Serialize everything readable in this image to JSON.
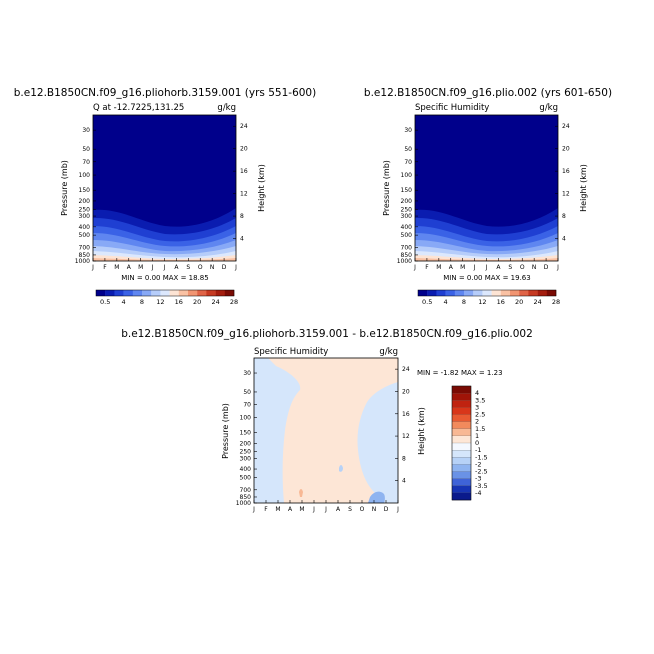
{
  "chart_data": [
    {
      "type": "contour",
      "title": "b.e12.B1850CN.f09_g16.pliohorb.3159.001 (yrs 551-600)",
      "left_label": "Q at -12.7225,131.25",
      "right_label": "g/kg",
      "xlabel": "",
      "ylabel": "Pressure (mb)",
      "ylabel_right": "Height (km)",
      "x_ticks": [
        "J",
        "F",
        "M",
        "A",
        "M",
        "J",
        "J",
        "A",
        "S",
        "O",
        "N",
        "D",
        "J"
      ],
      "y_ticks": [
        "30",
        "50",
        "70",
        "100",
        "150",
        "200",
        "250",
        "300",
        "400",
        "500",
        "700",
        "850",
        "1000"
      ],
      "y_ticks_right": [
        "24",
        "20",
        "16",
        "12",
        "8",
        "4"
      ],
      "ylim": [
        1000,
        20
      ],
      "y_scale": "log",
      "stats": "MIN =    0.00  MAX =   18.85",
      "min": 0.0,
      "max": 18.85,
      "colorbar_labels": [
        "0.5",
        "4",
        "8",
        "12",
        "16",
        "20",
        "24",
        "28"
      ]
    },
    {
      "type": "contour",
      "title": "b.e12.B1850CN.f09_g16.plio.002 (yrs 601-650)",
      "left_label": "Specific Humidity",
      "right_label": "g/kg",
      "xlabel": "",
      "ylabel": "Pressure (mb)",
      "ylabel_right": "Height (km)",
      "x_ticks": [
        "J",
        "F",
        "M",
        "A",
        "M",
        "J",
        "J",
        "A",
        "S",
        "O",
        "N",
        "D",
        "J"
      ],
      "y_ticks": [
        "30",
        "50",
        "70",
        "100",
        "150",
        "200",
        "250",
        "300",
        "400",
        "500",
        "700",
        "850",
        "1000"
      ],
      "y_ticks_right": [
        "24",
        "20",
        "16",
        "12",
        "8",
        "4"
      ],
      "ylim": [
        1000,
        20
      ],
      "y_scale": "log",
      "stats": "MIN =    0.00  MAX =   19.63",
      "min": 0.0,
      "max": 19.63,
      "colorbar_labels": [
        "0.5",
        "4",
        "8",
        "12",
        "16",
        "20",
        "24",
        "28"
      ]
    },
    {
      "type": "contour",
      "title": "b.e12.B1850CN.f09_g16.pliohorb.3159.001 - b.e12.B1850CN.f09_g16.plio.002",
      "left_label": "Specific Humidity",
      "right_label": "g/kg",
      "xlabel": "",
      "ylabel": "Pressure (mb)",
      "ylabel_right": "Height (km)",
      "x_ticks": [
        "J",
        "F",
        "M",
        "A",
        "M",
        "J",
        "J",
        "A",
        "S",
        "O",
        "N",
        "D",
        "J"
      ],
      "y_ticks": [
        "30",
        "50",
        "70",
        "100",
        "150",
        "200",
        "250",
        "300",
        "400",
        "500",
        "700",
        "850",
        "1000"
      ],
      "y_ticks_right": [
        "24",
        "20",
        "16",
        "12",
        "8",
        "4"
      ],
      "ylim": [
        1000,
        20
      ],
      "y_scale": "log",
      "stats": "MIN =   -1.82  MAX =    1.23",
      "min": -1.82,
      "max": 1.23,
      "colorbar_labels": [
        "4",
        "3.5",
        "3",
        "2.5",
        "2",
        "1.5",
        "1",
        "0",
        "-1",
        "-1.5",
        "-2",
        "-2.5",
        "-3",
        "-3.5",
        "-4"
      ]
    }
  ],
  "colors": {
    "seq_scale": [
      "#00008b",
      "#0a1cb0",
      "#1f3fd2",
      "#3a62e6",
      "#5f86f0",
      "#88a9f6",
      "#b6cdfa",
      "#dce8fd",
      "#fde4d4",
      "#f9c1a3",
      "#f19572",
      "#e06447",
      "#c63a22",
      "#a41d0e",
      "#7a0b04"
    ],
    "div_scale": [
      "#7a0b04",
      "#a01408",
      "#c02310",
      "#d8361a",
      "#e85a32",
      "#f28a5c",
      "#f8b894",
      "#fde6d6",
      "#f4f8ff",
      "#d5e6fb",
      "#b7d2f7",
      "#8fb4f0",
      "#6a92e6",
      "#3f63d8",
      "#1734b4",
      "#0a1a8c"
    ],
    "diff_positive_fill": "#fde6d6",
    "diff_negative_fill": "#d5e6fb"
  }
}
